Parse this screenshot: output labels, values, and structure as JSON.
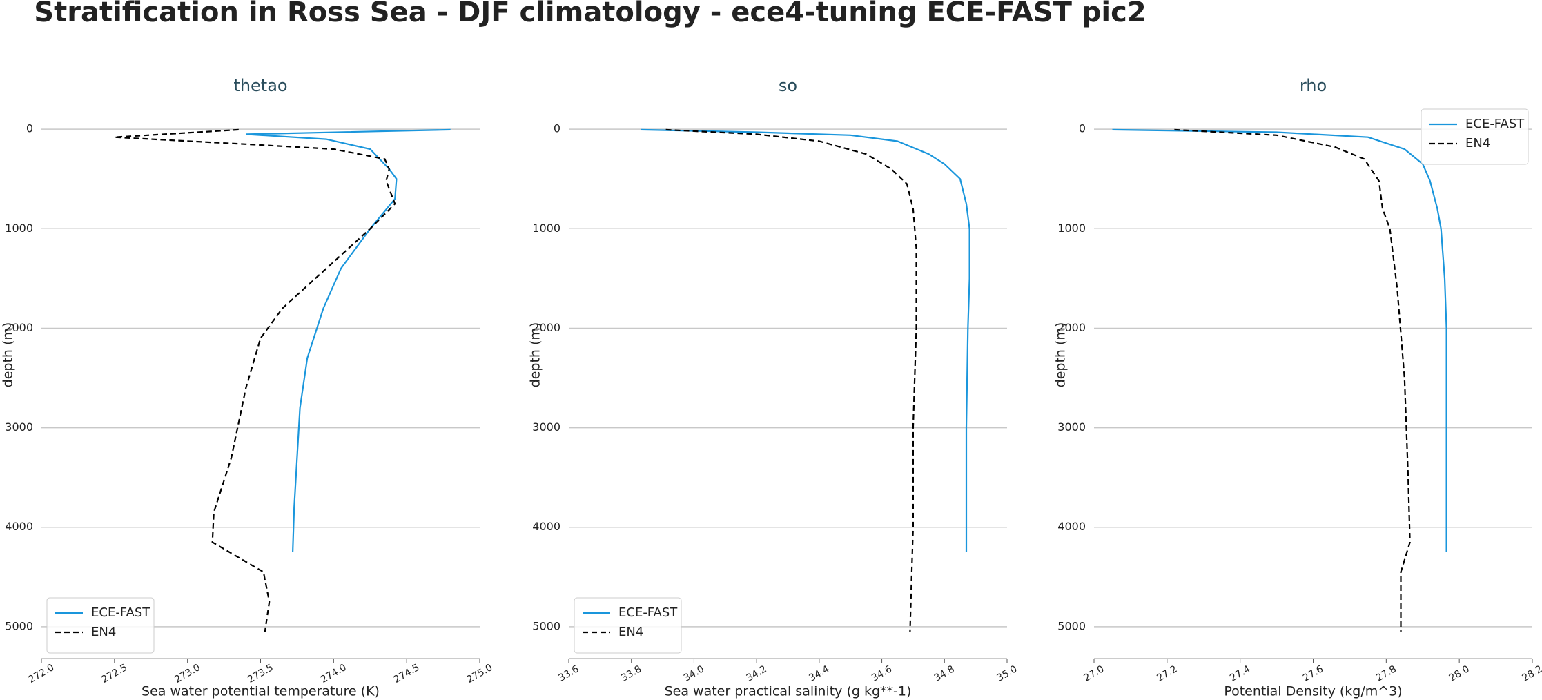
{
  "title": "Stratification in Ross Sea - DJF climatology - ece4-tuning ECE-FAST pic2",
  "chart_data": [
    {
      "type": "line",
      "title": "thetao",
      "xlabel": "Sea water potential temperature (K)",
      "ylabel": "depth (m)",
      "xlim": [
        272,
        275
      ],
      "xticks": [
        {
          "value": 272,
          "label": "272.0"
        },
        272.5,
        {
          "value": 273,
          "label": "273.0"
        },
        273.5,
        {
          "value": 274,
          "label": "274.0"
        },
        274.5,
        {
          "value": 275,
          "label": "275.0"
        }
      ],
      "ylim": [
        5320,
        -230
      ],
      "yticks": [
        0,
        1000,
        2000,
        3000,
        4000,
        5000
      ],
      "grid": true,
      "legend": "lower left",
      "series": [
        {
          "name": "ECE-FAST",
          "color": "#1a96dc",
          "dashed": false,
          "x": [
            274.8,
            273.4,
            273.95,
            274.25,
            274.38,
            274.43,
            274.42,
            274.25,
            274.05,
            273.93,
            273.82,
            273.77,
            273.75,
            273.73,
            273.72
          ],
          "y": [
            5,
            50,
            100,
            200,
            400,
            500,
            700,
            1000,
            1400,
            1800,
            2300,
            2800,
            3300,
            3800,
            4250
          ]
        },
        {
          "name": "EN4",
          "color": "#000000",
          "dashed": true,
          "x": [
            273.35,
            272.5,
            273.4,
            274.0,
            274.35,
            274.38,
            274.36,
            274.42,
            274.25,
            273.95,
            273.65,
            273.5,
            273.4,
            273.3,
            273.18,
            273.17,
            273.52,
            273.56,
            273.53
          ],
          "y": [
            5,
            80,
            150,
            200,
            300,
            400,
            520,
            750,
            1000,
            1400,
            1800,
            2100,
            2600,
            3300,
            3850,
            4150,
            4450,
            4750,
            5050
          ]
        }
      ]
    },
    {
      "type": "line",
      "title": "so",
      "xlabel": "Sea water practical salinity (g kg**-1)",
      "ylabel": "depth (m)",
      "xlim": [
        33.6,
        35.0
      ],
      "xticks": [
        33.6,
        33.8,
        {
          "value": 34,
          "label": "34.0"
        },
        34.2,
        34.4,
        34.6,
        34.8,
        {
          "value": 35,
          "label": "35.0"
        }
      ],
      "ylim": [
        5320,
        -230
      ],
      "yticks": [
        0,
        1000,
        2000,
        3000,
        4000,
        5000
      ],
      "grid": true,
      "legend": "lower left",
      "series": [
        {
          "name": "ECE-FAST",
          "color": "#1a96dc",
          "dashed": false,
          "x": [
            33.83,
            34.2,
            34.5,
            34.65,
            34.75,
            34.8,
            34.85,
            34.87,
            34.88,
            34.88,
            34.875,
            34.87,
            34.87
          ],
          "y": [
            5,
            30,
            60,
            120,
            250,
            350,
            500,
            750,
            1000,
            1500,
            2000,
            3000,
            4250
          ]
        },
        {
          "name": "EN4",
          "color": "#000000",
          "dashed": true,
          "x": [
            33.91,
            34.2,
            34.4,
            34.55,
            34.63,
            34.68,
            34.7,
            34.71,
            34.71,
            34.7,
            34.7,
            34.695,
            34.69
          ],
          "y": [
            5,
            50,
            120,
            250,
            400,
            550,
            800,
            1200,
            2000,
            3000,
            4000,
            4500,
            5050
          ]
        }
      ]
    },
    {
      "type": "line",
      "title": "rho",
      "xlabel": "Potential Density (kg/m^3)",
      "ylabel": "depth (m)",
      "xlim": [
        27.0,
        28.2
      ],
      "xticks": [
        {
          "value": 27,
          "label": "27.0"
        },
        27.2,
        27.4,
        27.6,
        27.8,
        {
          "value": 28,
          "label": "28.0"
        },
        28.2
      ],
      "ylim": [
        5320,
        -230
      ],
      "yticks": [
        0,
        1000,
        2000,
        3000,
        4000,
        5000
      ],
      "grid": true,
      "legend": "upper right",
      "series": [
        {
          "name": "ECE-FAST",
          "color": "#1a96dc",
          "dashed": false,
          "x": [
            27.05,
            27.5,
            27.75,
            27.85,
            27.9,
            27.92,
            27.94,
            27.95,
            27.96,
            27.965,
            27.965,
            27.965
          ],
          "y": [
            5,
            30,
            80,
            200,
            350,
            520,
            800,
            1000,
            1500,
            2000,
            3000,
            4250
          ]
        },
        {
          "name": "EN4",
          "color": "#000000",
          "dashed": true,
          "x": [
            27.22,
            27.5,
            27.66,
            27.74,
            27.78,
            27.79,
            27.81,
            27.83,
            27.85,
            27.86,
            27.865,
            27.84,
            27.84
          ],
          "y": [
            5,
            60,
            180,
            300,
            520,
            800,
            1000,
            1600,
            2500,
            3500,
            4150,
            4450,
            5050
          ]
        }
      ]
    }
  ]
}
